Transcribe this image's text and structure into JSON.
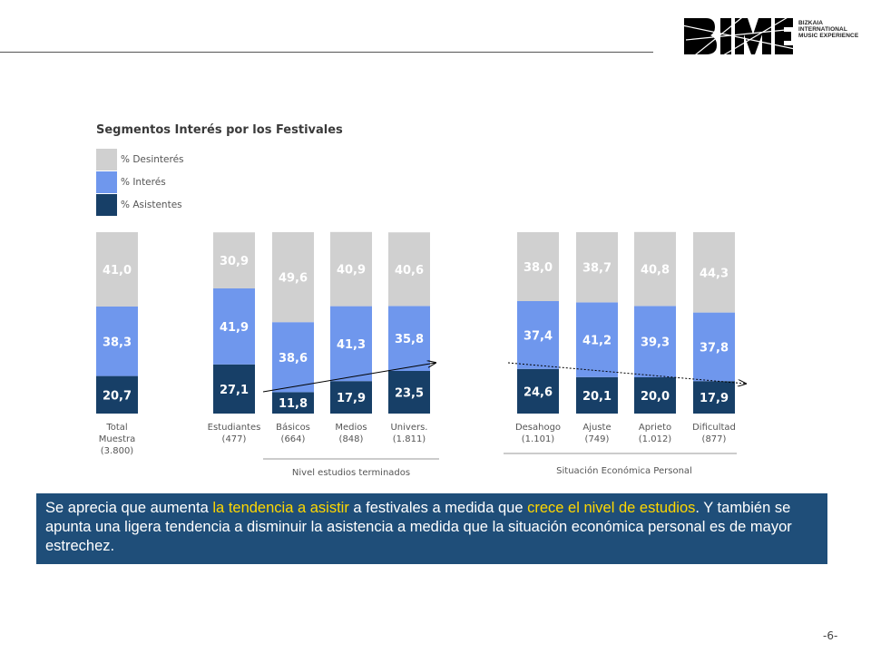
{
  "header": {
    "logo_text": "BIME",
    "logo_subtitle": [
      "BIZKAIA",
      "INTERNATIONAL",
      "MUSIC EXPERIENCE"
    ]
  },
  "chart_data": {
    "type": "bar",
    "stacked": true,
    "title": "Segmentos Interés por los Festivales",
    "legend": [
      "% Desinterés",
      "% Interés",
      "% Asistentes"
    ],
    "colors": {
      "desinteres": "#d0d0d0",
      "interes": "#6f97ed",
      "asistentes": "#173f67"
    },
    "groups": [
      {
        "label": "",
        "bars": [
          {
            "label": [
              "Total",
              "Muestra",
              "(3.800)"
            ],
            "asistentes": "20,7",
            "interes": "38,3",
            "desinteres": "41,0"
          }
        ]
      },
      {
        "label": "Nivel estudios terminados",
        "bars": [
          {
            "label": [
              "Estudiantes",
              "(477)"
            ],
            "asistentes": "27,1",
            "interes": "41,9",
            "desinteres": "30,9"
          },
          {
            "label": [
              "Básicos",
              "(664)"
            ],
            "asistentes": "11,8",
            "interes": "38,6",
            "desinteres": "49,6"
          },
          {
            "label": [
              "Medios",
              "(848)"
            ],
            "asistentes": "17,9",
            "interes": "41,3",
            "desinteres": "40,9"
          },
          {
            "label": [
              "Univers.",
              "(1.811)"
            ],
            "asistentes": "23,5",
            "interes": "35,8",
            "desinteres": "40,6"
          }
        ]
      },
      {
        "label": "Situación  Económica  Personal",
        "bars": [
          {
            "label": [
              "Desahogo",
              "(1.101)"
            ],
            "asistentes": "24,6",
            "interes": "37,4",
            "desinteres": "38,0"
          },
          {
            "label": [
              "Ajuste",
              "(749)"
            ],
            "asistentes": "20,1",
            "interes": "41,2",
            "desinteres": "38,7"
          },
          {
            "label": [
              "Aprieto",
              "(1.012)"
            ],
            "asistentes": "20,0",
            "interes": "39,3",
            "desinteres": "40,8"
          },
          {
            "label": [
              "Dificultad",
              "(877)"
            ],
            "asistentes": "17,9",
            "interes": "37,8",
            "desinteres": "44,3"
          }
        ]
      }
    ],
    "ylim": [
      0,
      100
    ]
  },
  "summary": {
    "part1": "Se aprecia que aumenta ",
    "highlight1": "la tendencia a asistir",
    "part2": " a festivales a medida que ",
    "highlight2": "crece el nivel de estudios",
    "part3": ". Y también se apunta una ligera tendencia a disminuir la asistencia a medida que la situación económica personal es de mayor estrechez."
  },
  "footer": {
    "page_number": "-6-"
  }
}
